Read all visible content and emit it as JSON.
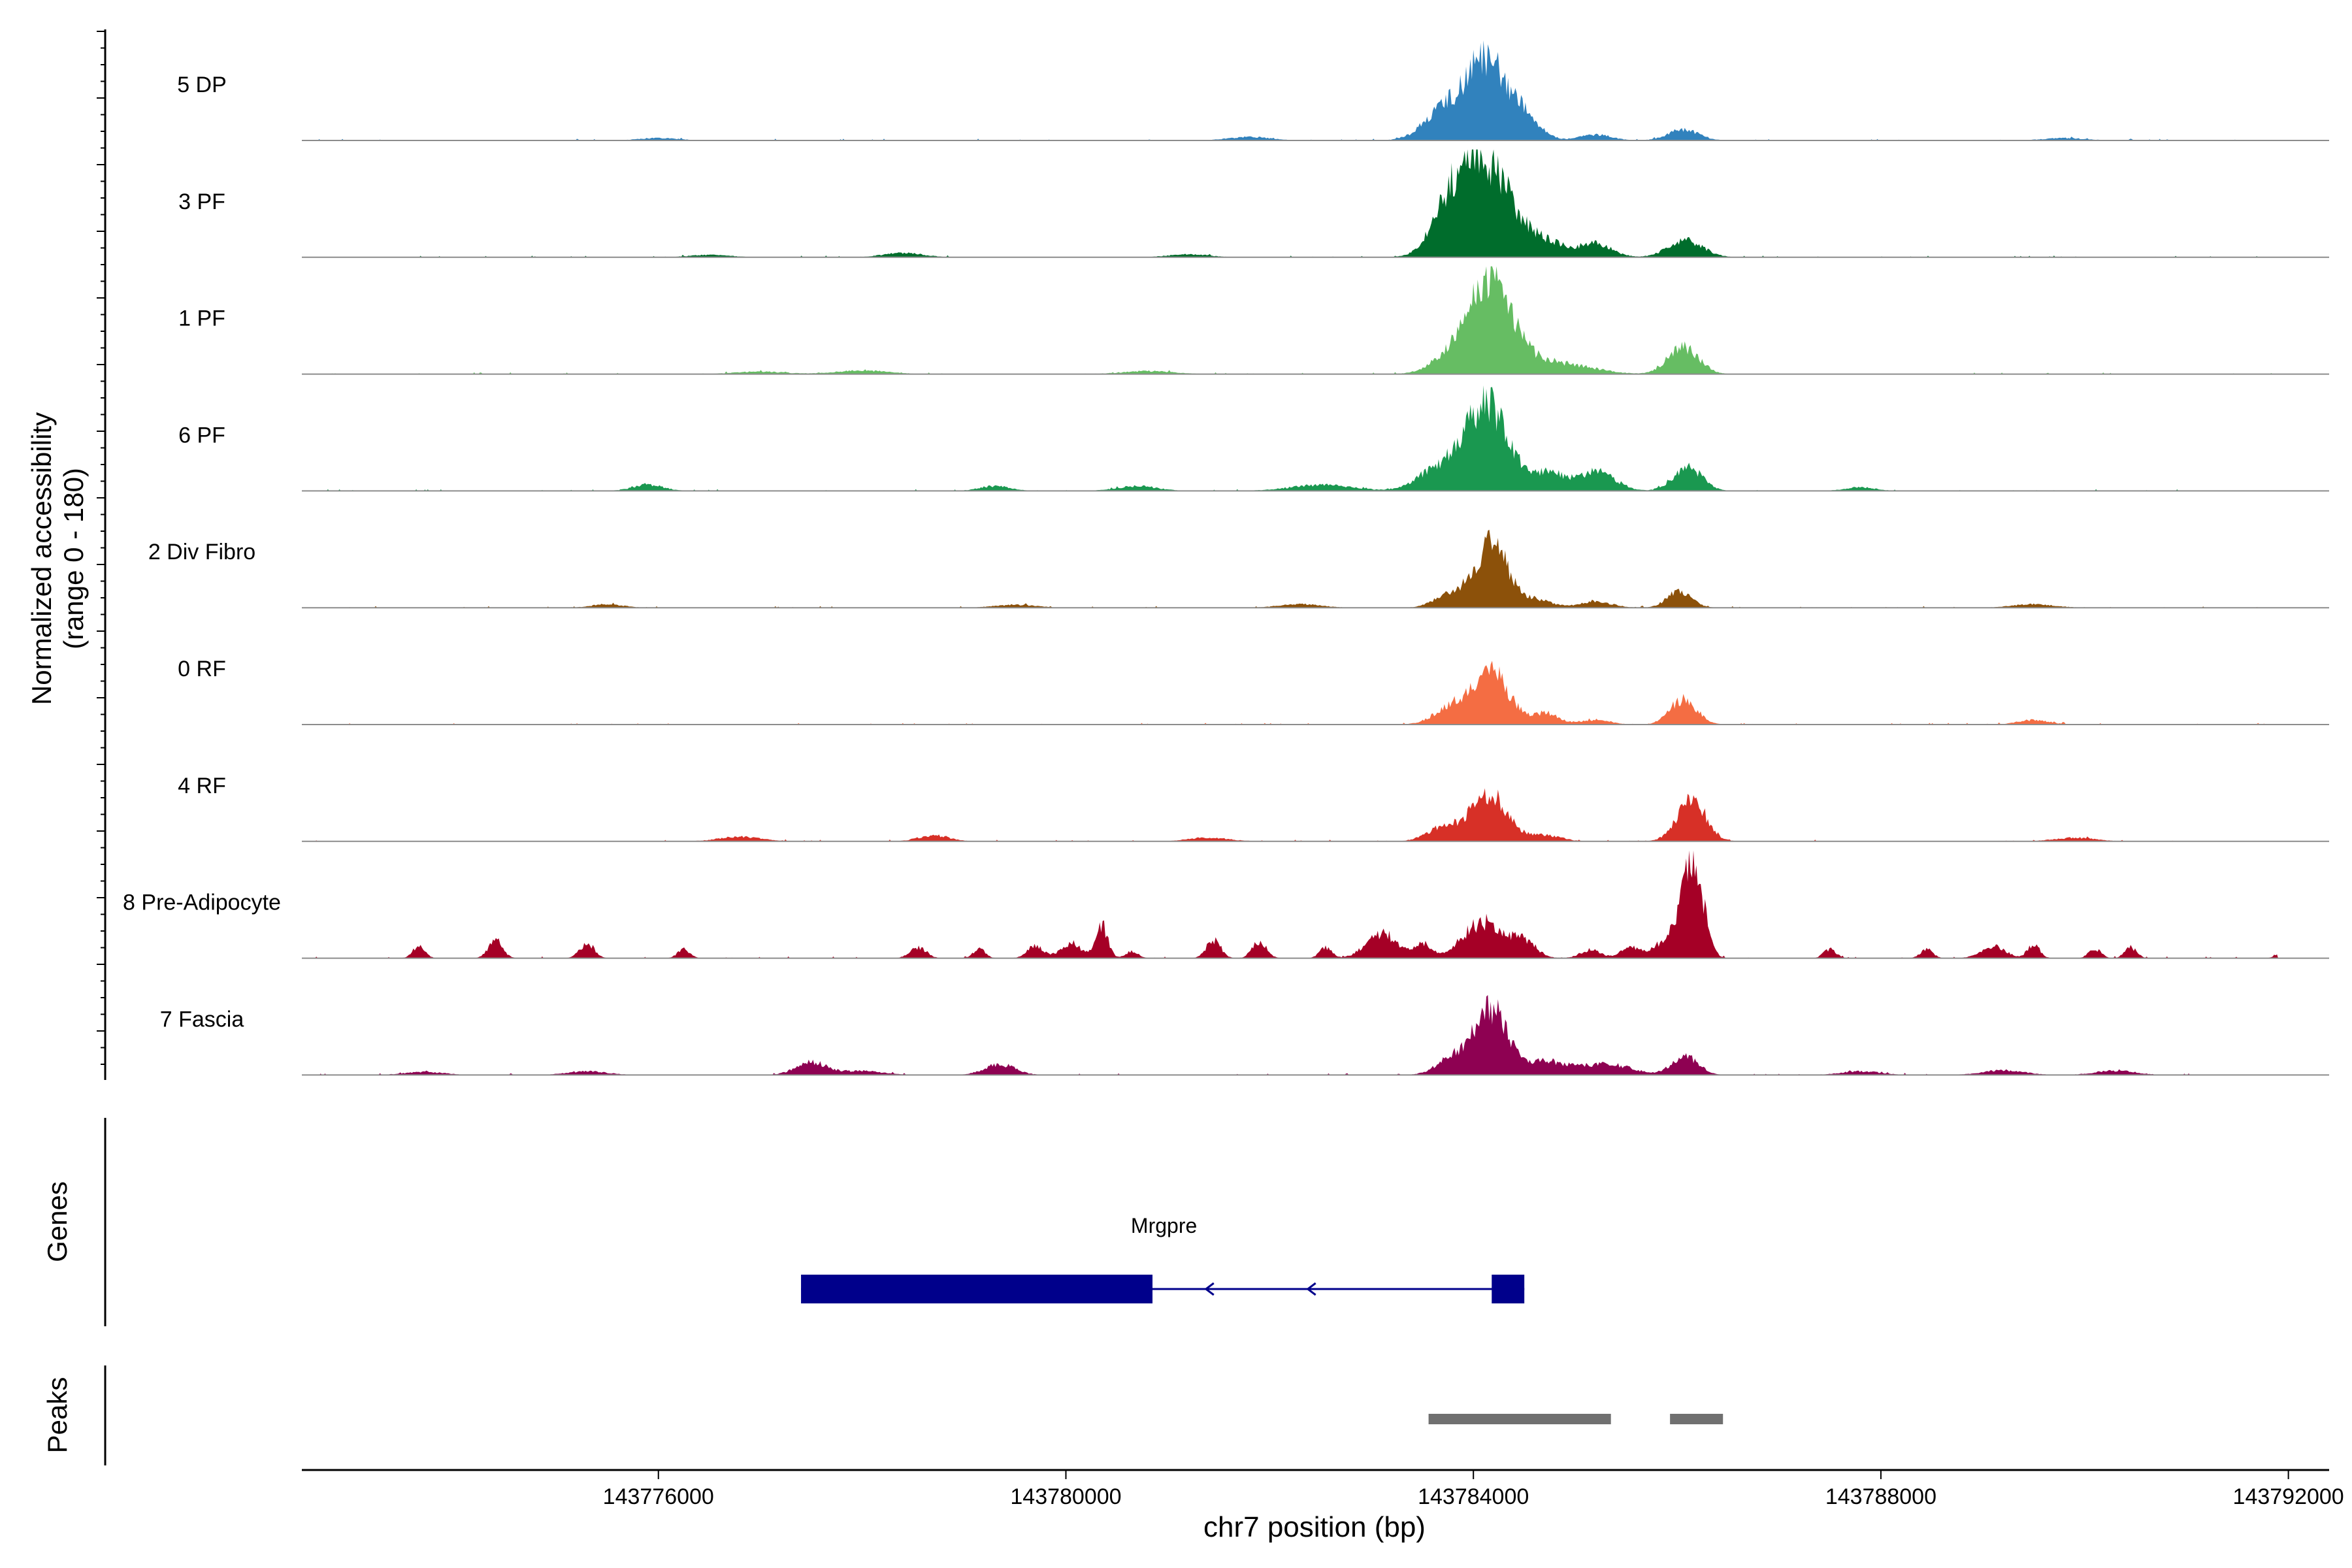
{
  "chart_data": {
    "type": "area",
    "ylabel_line1": "Normalized accessibility",
    "ylabel_line2": "(range 0 - 180)",
    "xlabel": "chr7 position (bp)",
    "xlim": [
      143772500,
      143792400
    ],
    "ylim": [
      0,
      180
    ],
    "grid": false,
    "legend": "none",
    "x_ticks": [
      143776000,
      143780000,
      143784000,
      143788000,
      143792000
    ],
    "x_tick_labels": [
      "143776000",
      "143780000",
      "143784000",
      "143788000",
      "143792000"
    ],
    "tracks": [
      {
        "label": "5 DP",
        "color": "#3182bd",
        "peaks": [
          [
            143783720,
            50,
            200
          ],
          [
            143784130,
            130,
            190
          ],
          [
            143784500,
            35,
            160
          ],
          [
            143785200,
            10,
            150
          ],
          [
            143786060,
            18,
            150
          ],
          [
            143781800,
            6,
            200
          ],
          [
            143776000,
            4,
            200
          ],
          [
            143789800,
            4,
            200
          ]
        ]
      },
      {
        "label": "3 PF",
        "color": "#006d2c",
        "peaks": [
          [
            143783800,
            85,
            190
          ],
          [
            143784150,
            145,
            230
          ],
          [
            143784700,
            25,
            200
          ],
          [
            143785200,
            22,
            160
          ],
          [
            143786080,
            28,
            170
          ],
          [
            143778400,
            7,
            200
          ],
          [
            143781200,
            5,
            200
          ],
          [
            143776500,
            4,
            200
          ]
        ]
      },
      {
        "label": "1 PF",
        "color": "#66bd63",
        "peaks": [
          [
            143783800,
            30,
            200
          ],
          [
            143784170,
            160,
            200
          ],
          [
            143784600,
            18,
            220
          ],
          [
            143785000,
            12,
            260
          ],
          [
            143786060,
            45,
            150
          ],
          [
            143778000,
            6,
            250
          ],
          [
            143780800,
            5,
            250
          ],
          [
            143777000,
            4,
            250
          ]
        ]
      },
      {
        "label": "6 PF",
        "color": "#1a9850",
        "peaks": [
          [
            143783700,
            40,
            220
          ],
          [
            143784130,
            140,
            190
          ],
          [
            143784700,
            30,
            230
          ],
          [
            143785230,
            30,
            170
          ],
          [
            143786100,
            40,
            140
          ],
          [
            143775900,
            10,
            150
          ],
          [
            143779300,
            8,
            150
          ],
          [
            143780700,
            8,
            200
          ],
          [
            143782500,
            10,
            300
          ],
          [
            143787800,
            6,
            150
          ]
        ]
      },
      {
        "label": "2 Div Fibro",
        "color": "#8c510a",
        "peaks": [
          [
            143783800,
            25,
            160
          ],
          [
            143784180,
            110,
            150
          ],
          [
            143784600,
            14,
            160
          ],
          [
            143785200,
            10,
            160
          ],
          [
            143786020,
            26,
            120
          ],
          [
            143775500,
            6,
            150
          ],
          [
            143779500,
            5,
            200
          ],
          [
            143782300,
            6,
            200
          ],
          [
            143789500,
            6,
            200
          ]
        ]
      },
      {
        "label": "0 RF",
        "color": "#f46d43",
        "peaks": [
          [
            143783800,
            32,
            170
          ],
          [
            143784180,
            85,
            170
          ],
          [
            143784700,
            18,
            140
          ],
          [
            143785200,
            8,
            140
          ],
          [
            143786060,
            42,
            130
          ],
          [
            143789500,
            8,
            150
          ]
        ]
      },
      {
        "label": "4 RF",
        "color": "#d73027",
        "peaks": [
          [
            143783700,
            22,
            160
          ],
          [
            143784150,
            80,
            180
          ],
          [
            143784700,
            10,
            160
          ],
          [
            143786140,
            70,
            140
          ],
          [
            143776800,
            8,
            200
          ],
          [
            143778700,
            10,
            150
          ],
          [
            143781400,
            6,
            200
          ],
          [
            143789900,
            6,
            200
          ]
        ]
      },
      {
        "label": "8 Pre-Adipocyte",
        "color": "#a50026",
        "peaks": [
          [
            143773650,
            20,
            60
          ],
          [
            143774400,
            30,
            70
          ],
          [
            143775300,
            25,
            70
          ],
          [
            143776250,
            15,
            60
          ],
          [
            143778550,
            18,
            80
          ],
          [
            143779150,
            15,
            60
          ],
          [
            143779700,
            20,
            80
          ],
          [
            143780050,
            25,
            100
          ],
          [
            143780350,
            55,
            60
          ],
          [
            143780650,
            12,
            60
          ],
          [
            143781450,
            30,
            70
          ],
          [
            143781900,
            28,
            70
          ],
          [
            143782550,
            18,
            60
          ],
          [
            143783100,
            42,
            150
          ],
          [
            143783500,
            25,
            80
          ],
          [
            143784100,
            60,
            200
          ],
          [
            143784500,
            25,
            120
          ],
          [
            143785150,
            14,
            100
          ],
          [
            143785550,
            18,
            100
          ],
          [
            143785900,
            30,
            120
          ],
          [
            143786150,
            175,
            100
          ],
          [
            143787500,
            15,
            60
          ],
          [
            143788450,
            15,
            60
          ],
          [
            143789100,
            20,
            120
          ],
          [
            143789500,
            22,
            60
          ],
          [
            143790100,
            15,
            60
          ],
          [
            143790450,
            18,
            60
          ],
          [
            143791950,
            12,
            60
          ]
        ]
      },
      {
        "label": "7 Fascia",
        "color": "#8e0152",
        "peaks": [
          [
            143773700,
            5,
            200
          ],
          [
            143775300,
            6,
            200
          ],
          [
            143777500,
            22,
            150
          ],
          [
            143778000,
            7,
            200
          ],
          [
            143779350,
            18,
            150
          ],
          [
            143783780,
            25,
            150
          ],
          [
            143784170,
            110,
            170
          ],
          [
            143784700,
            22,
            200
          ],
          [
            143785300,
            18,
            250
          ],
          [
            143786080,
            30,
            130
          ],
          [
            143787800,
            6,
            200
          ],
          [
            143789200,
            8,
            200
          ],
          [
            143790300,
            7,
            200
          ]
        ]
      }
    ],
    "genes_label": "Genes",
    "gene": {
      "name": "Mrgpre",
      "color": "#00008b",
      "strand": "-",
      "start": 143777400,
      "end": 143784500,
      "blocks": [
        [
          143777400,
          143780850
        ],
        [
          143784180,
          143784500
        ]
      ],
      "arrows": [
        143781400,
        143782400
      ]
    },
    "peaks_label": "Peaks",
    "peak_regions_color": "#707070",
    "peak_regions": [
      [
        143783560,
        143785350
      ],
      [
        143785930,
        143786450
      ]
    ]
  }
}
